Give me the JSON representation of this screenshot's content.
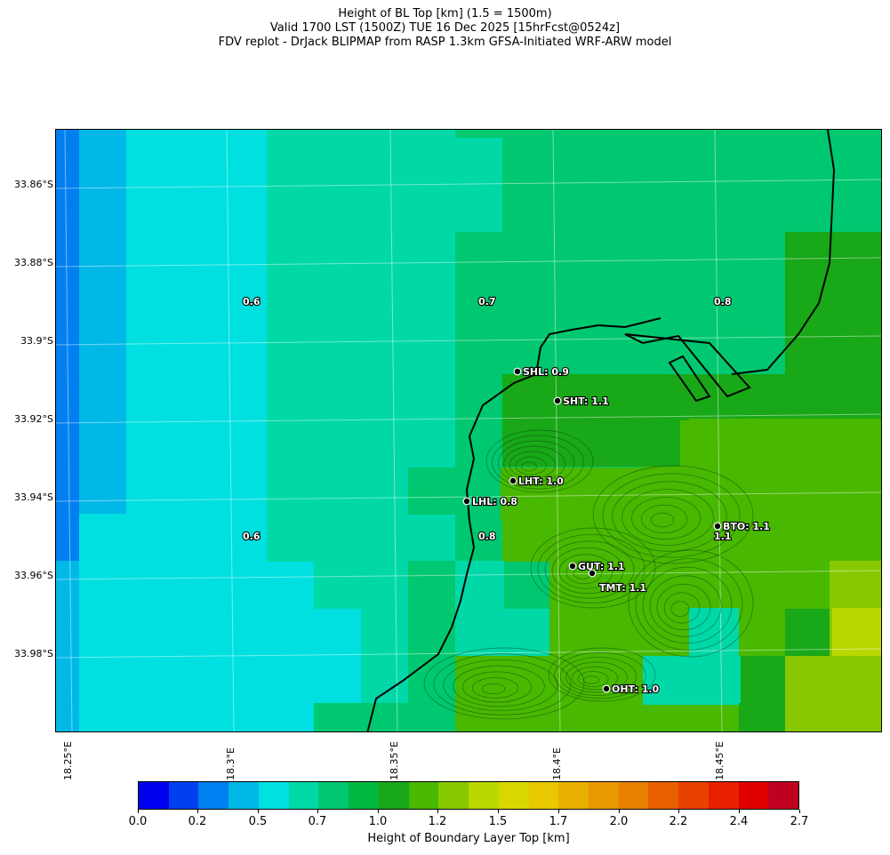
{
  "titles": {
    "line1": "Height of BL Top [km] (1.5 = 1500m)",
    "line2": "Valid 1700 LST (1500Z) TUE 16 Dec 2025 [15hrFcst@0524z]",
    "line3": "FDV replot - DrJack BLIPMAP from RASP 1.3km GFSA-Initiated WRF-ARW model"
  },
  "y_axis_labels": [
    "33.86°S",
    "33.88°S",
    "33.9°S",
    "33.92°S",
    "33.94°S",
    "33.96°S",
    "33.98°S"
  ],
  "x_axis_labels": [
    "18.25°E",
    "18.3°E",
    "18.35°E",
    "18.4°E",
    "18.45°E"
  ],
  "field_values": [
    "0.6",
    "0.7",
    "0.8",
    "0.6",
    "0.8",
    "1.1"
  ],
  "stations": [
    {
      "label": "SHL: 0.9"
    },
    {
      "label": "SHT: 1.1"
    },
    {
      "label": "LHT: 1.0"
    },
    {
      "label": "LHL: 0.8"
    },
    {
      "label": "BTO: 1.1"
    },
    {
      "label": "GUT: 1.1"
    },
    {
      "label": "TMT: 1.1"
    },
    {
      "label": "OHT: 1.0"
    }
  ],
  "colorbar": {
    "label": "Height of Boundary Layer Top [km]",
    "ticks": [
      "0.0",
      "0.2",
      "0.5",
      "0.7",
      "1.0",
      "1.2",
      "1.5",
      "1.7",
      "2.0",
      "2.2",
      "2.4",
      "2.7"
    ],
    "colors": [
      "#0000f0",
      "#0040f0",
      "#0080f0",
      "#00b8e8",
      "#00e0e0",
      "#00d8a8",
      "#00c870",
      "#00b840",
      "#18a818",
      "#48b800",
      "#88c800",
      "#b8d800",
      "#d8d800",
      "#e8c800",
      "#e8b000",
      "#e89800",
      "#e88000",
      "#e86000",
      "#e84000",
      "#e82000",
      "#e00000",
      "#c00020"
    ]
  },
  "grid_colors": {
    "a": "#0080f0",
    "b": "#00b8e8",
    "c": "#00e0e0",
    "d": "#00d8a8",
    "e": "#00c870",
    "f": "#18a818",
    "g": "#48b800",
    "h": "#88c800",
    "i": "#b8d800"
  }
}
